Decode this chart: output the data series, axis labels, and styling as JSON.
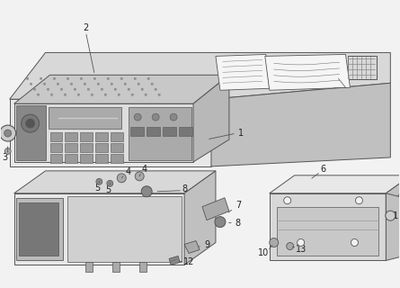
{
  "bg_color": "#f2f2f2",
  "line_color": "#555555",
  "dark_line": "#333333",
  "fill_light": "#e8e8e8",
  "fill_mid": "#d8d8d8",
  "fill_dark": "#c0c0c0",
  "fill_white": "#f5f5f5"
}
